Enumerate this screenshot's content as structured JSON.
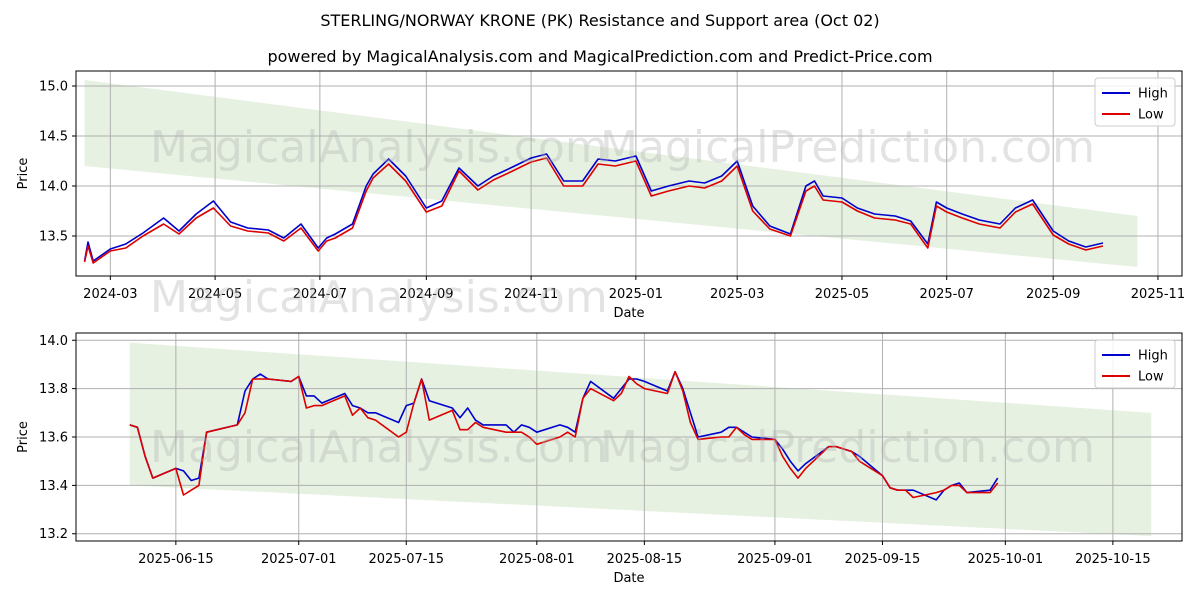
{
  "title_line1": "STERLING/NORWAY KRONE (PK) Resistance and Support area (Oct 02)",
  "title_line2": "powered by MagicalAnalysis.com and MagicalPrediction.com and Predict-Price.com",
  "watermarks": [
    "MagicalAnalysis.com",
    "MagicalPrediction.com"
  ],
  "colors": {
    "high": "#0000cc",
    "low": "#dd0000",
    "band": "#d8ead2"
  },
  "chart_data": [
    {
      "type": "line",
      "xlabel": "Date",
      "ylabel": "Price",
      "legend": [
        "High",
        "Low"
      ],
      "legend_position": "top-right",
      "x_range": [
        "2024-02-10",
        "2025-11-15"
      ],
      "ylim": [
        13.1,
        15.15
      ],
      "yticks": [
        13.5,
        14.0,
        14.5,
        15.0
      ],
      "ytick_labels": [
        "13.5",
        "14.0",
        "14.5",
        "15.0"
      ],
      "xticks": [
        "2024-03-01",
        "2024-05-01",
        "2024-07-01",
        "2024-09-01",
        "2024-11-01",
        "2025-01-01",
        "2025-03-01",
        "2025-05-01",
        "2025-07-01",
        "2025-09-01",
        "2025-11-01"
      ],
      "xtick_labels": [
        "2024-03",
        "2024-05",
        "2024-07",
        "2024-09",
        "2024-11",
        "2025-01",
        "2025-03",
        "2025-05",
        "2025-07",
        "2025-09",
        "2025-11"
      ],
      "band": {
        "x": [
          "2024-02-15",
          "2025-10-20"
        ],
        "upper": [
          15.06,
          13.7
        ],
        "lower": [
          14.2,
          13.19
        ]
      },
      "series": [
        {
          "name": "High",
          "x": [
            "2024-02-15",
            "2024-02-17",
            "2024-02-20",
            "2024-03-01",
            "2024-03-10",
            "2024-03-20",
            "2024-04-01",
            "2024-04-10",
            "2024-04-20",
            "2024-04-30",
            "2024-05-10",
            "2024-05-20",
            "2024-06-01",
            "2024-06-10",
            "2024-06-20",
            "2024-06-30",
            "2024-07-05",
            "2024-07-10",
            "2024-07-20",
            "2024-07-28",
            "2024-08-01",
            "2024-08-10",
            "2024-08-20",
            "2024-09-01",
            "2024-09-10",
            "2024-09-20",
            "2024-10-01",
            "2024-10-10",
            "2024-10-20",
            "2024-11-01",
            "2024-11-10",
            "2024-11-20",
            "2024-12-01",
            "2024-12-10",
            "2024-12-20",
            "2025-01-01",
            "2025-01-10",
            "2025-01-20",
            "2025-02-01",
            "2025-02-10",
            "2025-02-20",
            "2025-03-01",
            "2025-03-10",
            "2025-03-20",
            "2025-04-01",
            "2025-04-10",
            "2025-04-15",
            "2025-04-20",
            "2025-05-01",
            "2025-05-10",
            "2025-05-20",
            "2025-06-01",
            "2025-06-10",
            "2025-06-20",
            "2025-06-25",
            "2025-07-01",
            "2025-07-10",
            "2025-07-20",
            "2025-08-01",
            "2025-08-10",
            "2025-08-20",
            "2025-09-01",
            "2025-09-10",
            "2025-09-20",
            "2025-09-30"
          ],
          "values": [
            13.25,
            13.44,
            13.25,
            13.37,
            13.42,
            13.53,
            13.68,
            13.55,
            13.72,
            13.85,
            13.64,
            13.58,
            13.56,
            13.48,
            13.62,
            13.38,
            13.48,
            13.52,
            13.62,
            14.0,
            14.12,
            14.27,
            14.1,
            13.78,
            13.85,
            14.18,
            14.0,
            14.1,
            14.18,
            14.28,
            14.32,
            14.05,
            14.05,
            14.27,
            14.25,
            14.3,
            13.95,
            14.0,
            14.05,
            14.03,
            14.1,
            14.25,
            13.8,
            13.6,
            13.52,
            14.0,
            14.05,
            13.9,
            13.88,
            13.78,
            13.72,
            13.7,
            13.65,
            13.42,
            13.84,
            13.78,
            13.72,
            13.66,
            13.62,
            13.78,
            13.86,
            13.55,
            13.45,
            13.39,
            13.43
          ]
        },
        {
          "name": "Low",
          "x": [
            "2024-02-15",
            "2024-02-17",
            "2024-02-20",
            "2024-03-01",
            "2024-03-10",
            "2024-03-20",
            "2024-04-01",
            "2024-04-10",
            "2024-04-20",
            "2024-04-30",
            "2024-05-10",
            "2024-05-20",
            "2024-06-01",
            "2024-06-10",
            "2024-06-20",
            "2024-06-30",
            "2024-07-05",
            "2024-07-10",
            "2024-07-20",
            "2024-07-28",
            "2024-08-01",
            "2024-08-10",
            "2024-08-20",
            "2024-09-01",
            "2024-09-10",
            "2024-09-20",
            "2024-10-01",
            "2024-10-10",
            "2024-10-20",
            "2024-11-01",
            "2024-11-10",
            "2024-11-20",
            "2024-12-01",
            "2024-12-10",
            "2024-12-20",
            "2025-01-01",
            "2025-01-10",
            "2025-01-20",
            "2025-02-01",
            "2025-02-10",
            "2025-02-20",
            "2025-03-01",
            "2025-03-10",
            "2025-03-20",
            "2025-04-01",
            "2025-04-10",
            "2025-04-15",
            "2025-04-20",
            "2025-05-01",
            "2025-05-10",
            "2025-05-20",
            "2025-06-01",
            "2025-06-10",
            "2025-06-20",
            "2025-06-25",
            "2025-07-01",
            "2025-07-10",
            "2025-07-20",
            "2025-08-01",
            "2025-08-10",
            "2025-08-20",
            "2025-09-01",
            "2025-09-10",
            "2025-09-20",
            "2025-09-30"
          ],
          "values": [
            13.24,
            13.4,
            13.23,
            13.35,
            13.38,
            13.5,
            13.62,
            13.52,
            13.68,
            13.78,
            13.6,
            13.55,
            13.53,
            13.45,
            13.58,
            13.35,
            13.45,
            13.48,
            13.58,
            13.95,
            14.08,
            14.22,
            14.05,
            13.74,
            13.8,
            14.15,
            13.96,
            14.06,
            14.14,
            14.24,
            14.28,
            14.0,
            14.0,
            14.22,
            14.2,
            14.25,
            13.9,
            13.95,
            14.0,
            13.98,
            14.05,
            14.2,
            13.75,
            13.57,
            13.5,
            13.95,
            14.0,
            13.86,
            13.84,
            13.75,
            13.68,
            13.66,
            13.62,
            13.38,
            13.8,
            13.74,
            13.68,
            13.62,
            13.58,
            13.74,
            13.82,
            13.51,
            13.42,
            13.36,
            13.4
          ]
        }
      ]
    },
    {
      "type": "line",
      "xlabel": "Date",
      "ylabel": "Price",
      "legend": [
        "High",
        "Low"
      ],
      "legend_position": "top-right",
      "x_range": [
        "2025-06-02",
        "2025-10-24"
      ],
      "ylim": [
        13.17,
        14.03
      ],
      "yticks": [
        13.2,
        13.4,
        13.6,
        13.8,
        14.0
      ],
      "ytick_labels": [
        "13.2",
        "13.4",
        "13.6",
        "13.8",
        "14.0"
      ],
      "xticks": [
        "2025-06-15",
        "2025-07-01",
        "2025-07-15",
        "2025-08-01",
        "2025-08-15",
        "2025-09-01",
        "2025-09-15",
        "2025-10-01",
        "2025-10-15"
      ],
      "xtick_labels": [
        "2025-06-15",
        "2025-07-01",
        "2025-07-15",
        "2025-08-01",
        "2025-08-15",
        "2025-09-01",
        "2025-09-15",
        "2025-10-01",
        "2025-10-15"
      ],
      "band": {
        "x": [
          "2025-06-09",
          "2025-10-20"
        ],
        "upper": [
          13.99,
          13.7
        ],
        "lower": [
          13.4,
          13.19
        ]
      },
      "series": [
        {
          "name": "High",
          "x": [
            "2025-06-09",
            "2025-06-10",
            "2025-06-11",
            "2025-06-12",
            "2025-06-15",
            "2025-06-16",
            "2025-06-17",
            "2025-06-18",
            "2025-06-19",
            "2025-06-23",
            "2025-06-24",
            "2025-06-25",
            "2025-06-26",
            "2025-06-27",
            "2025-06-30",
            "2025-07-01",
            "2025-07-02",
            "2025-07-03",
            "2025-07-04",
            "2025-07-07",
            "2025-07-08",
            "2025-07-09",
            "2025-07-10",
            "2025-07-11",
            "2025-07-14",
            "2025-07-15",
            "2025-07-16",
            "2025-07-17",
            "2025-07-18",
            "2025-07-21",
            "2025-07-22",
            "2025-07-23",
            "2025-07-24",
            "2025-07-25",
            "2025-07-28",
            "2025-07-29",
            "2025-07-30",
            "2025-07-31",
            "2025-08-01",
            "2025-08-04",
            "2025-08-05",
            "2025-08-06",
            "2025-08-07",
            "2025-08-08",
            "2025-08-11",
            "2025-08-12",
            "2025-08-13",
            "2025-08-14",
            "2025-08-15",
            "2025-08-18",
            "2025-08-19",
            "2025-08-20",
            "2025-08-21",
            "2025-08-22",
            "2025-08-25",
            "2025-08-26",
            "2025-08-27",
            "2025-08-28",
            "2025-08-29",
            "2025-09-01",
            "2025-09-02",
            "2025-09-03",
            "2025-09-04",
            "2025-09-05",
            "2025-09-08",
            "2025-09-09",
            "2025-09-10",
            "2025-09-11",
            "2025-09-12",
            "2025-09-15",
            "2025-09-16",
            "2025-09-17",
            "2025-09-18",
            "2025-09-19",
            "2025-09-22",
            "2025-09-23",
            "2025-09-24",
            "2025-09-25",
            "2025-09-26",
            "2025-09-29",
            "2025-09-30"
          ],
          "values": [
            13.65,
            13.64,
            13.52,
            13.43,
            13.47,
            13.46,
            13.42,
            13.43,
            13.62,
            13.65,
            13.79,
            13.84,
            13.86,
            13.84,
            13.83,
            13.85,
            13.77,
            13.77,
            13.74,
            13.78,
            13.73,
            13.72,
            13.7,
            13.7,
            13.66,
            13.73,
            13.74,
            13.84,
            13.75,
            13.72,
            13.68,
            13.72,
            13.67,
            13.65,
            13.65,
            13.62,
            13.65,
            13.64,
            13.62,
            13.65,
            13.64,
            13.62,
            13.76,
            13.83,
            13.76,
            13.8,
            13.84,
            13.84,
            13.83,
            13.79,
            13.87,
            13.8,
            13.7,
            13.6,
            13.62,
            13.64,
            13.64,
            13.62,
            13.6,
            13.59,
            13.55,
            13.5,
            13.46,
            13.49,
            13.56,
            13.56,
            13.55,
            13.54,
            13.52,
            13.44,
            13.39,
            13.38,
            13.38,
            13.38,
            13.34,
            13.38,
            13.4,
            13.41,
            13.37,
            13.38,
            13.43
          ]
        },
        {
          "name": "Low",
          "x": [
            "2025-06-09",
            "2025-06-10",
            "2025-06-11",
            "2025-06-12",
            "2025-06-15",
            "2025-06-16",
            "2025-06-17",
            "2025-06-18",
            "2025-06-19",
            "2025-06-23",
            "2025-06-24",
            "2025-06-25",
            "2025-06-26",
            "2025-06-27",
            "2025-06-30",
            "2025-07-01",
            "2025-07-02",
            "2025-07-03",
            "2025-07-04",
            "2025-07-07",
            "2025-07-08",
            "2025-07-09",
            "2025-07-10",
            "2025-07-11",
            "2025-07-14",
            "2025-07-15",
            "2025-07-16",
            "2025-07-17",
            "2025-07-18",
            "2025-07-21",
            "2025-07-22",
            "2025-07-23",
            "2025-07-24",
            "2025-07-25",
            "2025-07-28",
            "2025-07-29",
            "2025-07-30",
            "2025-07-31",
            "2025-08-01",
            "2025-08-04",
            "2025-08-05",
            "2025-08-06",
            "2025-08-07",
            "2025-08-08",
            "2025-08-11",
            "2025-08-12",
            "2025-08-13",
            "2025-08-14",
            "2025-08-15",
            "2025-08-18",
            "2025-08-19",
            "2025-08-20",
            "2025-08-21",
            "2025-08-22",
            "2025-08-25",
            "2025-08-26",
            "2025-08-27",
            "2025-08-28",
            "2025-08-29",
            "2025-09-01",
            "2025-09-02",
            "2025-09-03",
            "2025-09-04",
            "2025-09-05",
            "2025-09-08",
            "2025-09-09",
            "2025-09-10",
            "2025-09-11",
            "2025-09-12",
            "2025-09-15",
            "2025-09-16",
            "2025-09-17",
            "2025-09-18",
            "2025-09-19",
            "2025-09-22",
            "2025-09-23",
            "2025-09-24",
            "2025-09-25",
            "2025-09-26",
            "2025-09-29",
            "2025-09-30"
          ],
          "values": [
            13.65,
            13.64,
            13.52,
            13.43,
            13.47,
            13.36,
            13.38,
            13.4,
            13.62,
            13.65,
            13.7,
            13.84,
            13.84,
            13.84,
            13.83,
            13.85,
            13.72,
            13.73,
            13.73,
            13.77,
            13.69,
            13.72,
            13.68,
            13.67,
            13.6,
            13.62,
            13.74,
            13.84,
            13.67,
            13.71,
            13.63,
            13.63,
            13.66,
            13.64,
            13.62,
            13.62,
            13.62,
            13.6,
            13.57,
            13.6,
            13.62,
            13.6,
            13.76,
            13.8,
            13.75,
            13.78,
            13.85,
            13.82,
            13.8,
            13.78,
            13.87,
            13.79,
            13.66,
            13.59,
            13.6,
            13.6,
            13.64,
            13.61,
            13.59,
            13.59,
            13.52,
            13.47,
            13.43,
            13.47,
            13.56,
            13.56,
            13.55,
            13.54,
            13.5,
            13.44,
            13.39,
            13.38,
            13.38,
            13.35,
            13.37,
            13.38,
            13.4,
            13.4,
            13.37,
            13.37,
            13.41
          ]
        }
      ]
    }
  ]
}
